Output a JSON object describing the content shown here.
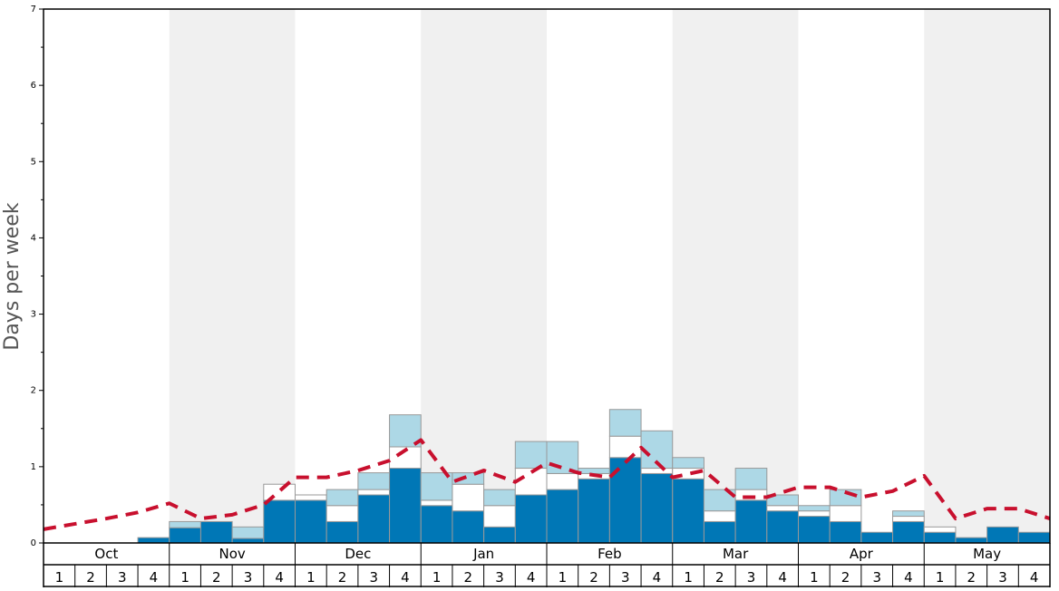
{
  "chart_data": {
    "type": "bar",
    "ylabel": "Days per week",
    "ylim": [
      0,
      7
    ],
    "y_ticks": [
      "0",
      "1",
      "2",
      "3",
      "4",
      "5",
      "6",
      "7"
    ],
    "months": [
      "Oct",
      "Nov",
      "Dec",
      "Jan",
      "Feb",
      "Mar",
      "Apr",
      "May"
    ],
    "week_labels": [
      "1",
      "2",
      "3",
      "4"
    ],
    "colors": {
      "dark": "#0077b6",
      "middle": "#ffffff",
      "light": "#add8e6",
      "average_line": "#c8102e",
      "month_shade": "#f0f0f0"
    },
    "series": [
      {
        "values": [
          0,
          0,
          0,
          0.07,
          0.2,
          0.28,
          0.06,
          0.56,
          0.56,
          0.28,
          0.63,
          0.98,
          0.49,
          0.42,
          0.21,
          0.63,
          0.7,
          0.84,
          1.12,
          0.91,
          0.84,
          0.28,
          0.56,
          0.42,
          0.35,
          0.28,
          0.14,
          0.28,
          0.14,
          0.07,
          0.21,
          0.14
        ]
      },
      {
        "values": [
          0,
          0,
          0,
          0,
          0,
          0,
          0,
          0.21,
          0.07,
          0.21,
          0.07,
          0.28,
          0.07,
          0.35,
          0.28,
          0.35,
          0.21,
          0.07,
          0.28,
          0.07,
          0.14,
          0.14,
          0.14,
          0.07,
          0.07,
          0.21,
          0,
          0.07,
          0.07,
          0,
          0,
          0
        ]
      },
      {
        "values": [
          0,
          0,
          0,
          0,
          0.08,
          0,
          0.15,
          0,
          0,
          0.21,
          0.22,
          0.42,
          0.36,
          0.15,
          0.21,
          0.35,
          0.42,
          0.07,
          0.35,
          0.49,
          0.14,
          0.28,
          0.28,
          0.14,
          0.07,
          0.21,
          0,
          0.07,
          0,
          0,
          0,
          0
        ]
      },
      {
        "values": [
          0.18,
          0.25,
          0.32,
          0.4,
          0.52,
          0.32,
          0.37,
          0.5,
          0.86,
          0.86,
          0.95,
          1.08,
          1.35,
          0.8,
          0.95,
          0.8,
          1.05,
          0.92,
          0.86,
          1.25,
          0.86,
          0.95,
          0.6,
          0.6,
          0.73,
          0.73,
          0.6,
          0.68,
          0.88,
          0.32,
          0.45,
          0.45,
          0.32
        ]
      }
    ]
  }
}
